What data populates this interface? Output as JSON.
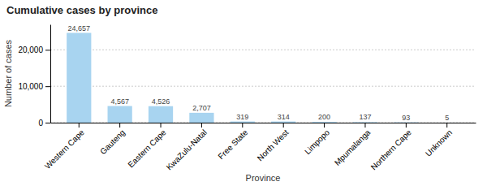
{
  "chart_data": {
    "type": "bar",
    "title": "Cumulative cases by province",
    "categories": [
      "Western Cape",
      "Gauteng",
      "Eastern Cape",
      "KwaZulu-Natal",
      "Free State",
      "North West",
      "Limpopo",
      "Mpumalanga",
      "Northern Cape",
      "Unknown"
    ],
    "values": [
      24657,
      4567,
      4526,
      2707,
      319,
      314,
      200,
      137,
      93,
      5
    ],
    "value_labels": [
      "24,657",
      "4,567",
      "4,526",
      "2,707",
      "319",
      "314",
      "200",
      "137",
      "93",
      "5"
    ],
    "data_labels": true,
    "color": "#a8d4f0",
    "xlabel": "Province",
    "ylabel": "Number of cases",
    "ylim": [
      0,
      27000
    ],
    "yticks": [
      0,
      {
        "value": 10000,
        "label": "10,000"
      },
      {
        "value": 20000,
        "label": "20,000"
      }
    ],
    "grid": true
  }
}
